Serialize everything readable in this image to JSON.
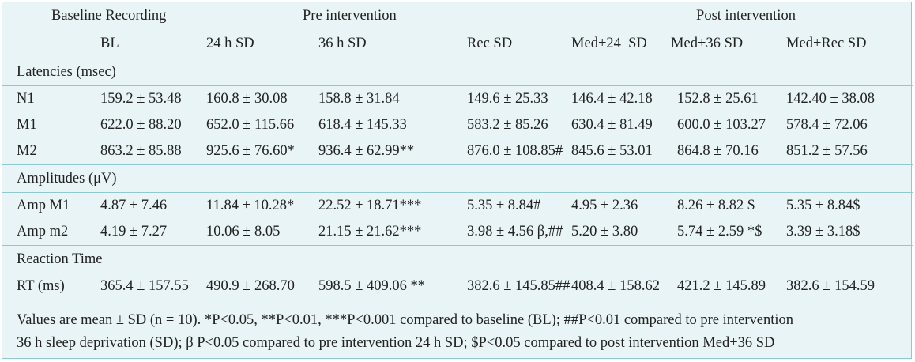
{
  "groups": {
    "baseline": "Baseline Recording",
    "pre": "Pre intervention",
    "post": "Post intervention"
  },
  "columns": [
    "BL",
    "24 h SD",
    "36 h SD",
    "Rec SD",
    "Med+24  SD",
    "Med+36 SD",
    "Med+Rec SD"
  ],
  "sections": [
    {
      "title": "Latencies (msec)",
      "rows": [
        {
          "label": "N1",
          "values": [
            "159.2 ± 53.48",
            "160.8 ± 30.08",
            "158.8 ± 31.84",
            "149.6 ± 25.33",
            "146.4 ± 42.18",
            "152.8 ± 25.61",
            "142.40 ± 38.08"
          ]
        },
        {
          "label": "M1",
          "values": [
            "622.0 ± 88.20",
            "652.0 ± 115.66",
            "618.4 ± 145.33",
            "583.2 ± 85.26",
            "630.4 ± 81.49",
            "600.0 ± 103.27",
            "578.4 ± 72.06"
          ]
        },
        {
          "label": "M2",
          "values": [
            "863.2 ± 85.88",
            "925.6 ± 76.60*",
            "936.4 ± 62.99**",
            "876.0 ± 108.85#",
            "845.6 ± 53.01",
            "864.8 ± 70.16",
            "851.2 ± 57.56"
          ]
        }
      ]
    },
    {
      "title": "Amplitudes (μV)",
      "rows": [
        {
          "label": "Amp M1",
          "values": [
            "4.87 ± 7.46",
            "11.84 ± 10.28*",
            "22.52 ± 18.71***",
            "5.35 ± 8.84#",
            "4.95 ± 2.36",
            "8.26 ± 8.82 $",
            "5.35 ± 8.84$"
          ]
        },
        {
          "label": "Amp m2",
          "values": [
            "4.19 ± 7.27",
            "10.06 ± 8.05",
            "21.15 ± 21.62***",
            "3.98 ± 4.56 β,##",
            "5.20 ± 3.80",
            "5.74 ± 2.59 *$",
            "3.39 ± 3.18$"
          ]
        }
      ]
    },
    {
      "title": "Reaction Time",
      "rows": [
        {
          "label": "RT (ms)",
          "values": [
            "365.4 ± 157.55",
            "490.9 ± 268.70",
            "598.5 ± 409.06 **",
            "382.6 ± 145.85##",
            "408.4 ± 158.62",
            "421.2 ± 145.89",
            "382.6 ± 154.59"
          ]
        }
      ]
    }
  ],
  "footnote": {
    "line1": "Values are mean ± SD (n = 10). *P<0.05, **P<0.01, ***P<0.001 compared to baseline (BL); ##P<0.01 compared to pre intervention",
    "line2": "36 h sleep deprivation (SD); β P<0.05 compared to pre intervention 24 h SD; $P<0.05 compared to post intervention Med+36 SD"
  }
}
